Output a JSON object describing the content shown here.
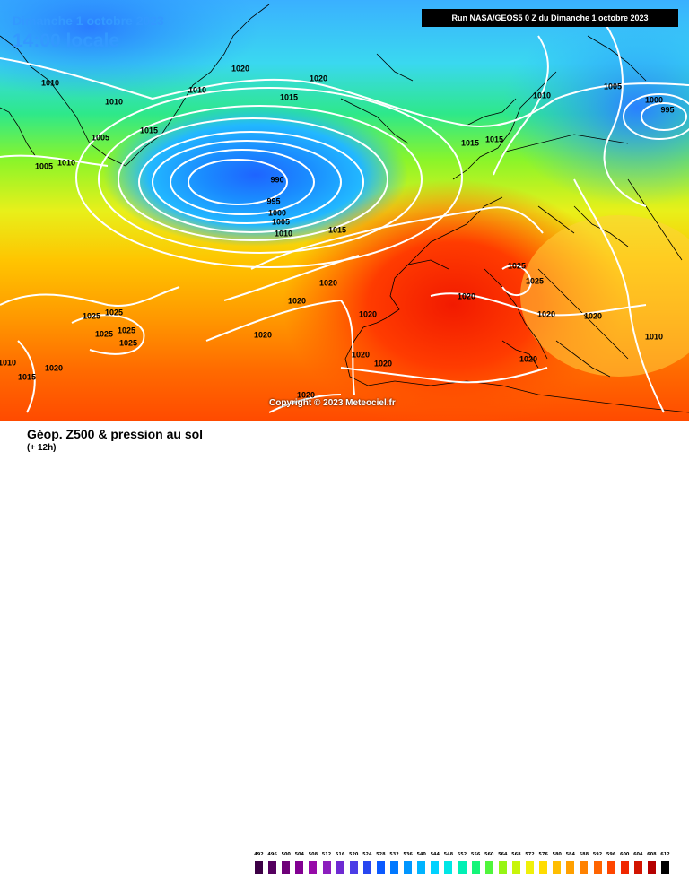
{
  "header": {
    "date": "Dimanche 1 octobre 2023",
    "time": "14:00 locale",
    "run": "Run NASA/GEOS5 0 Z du Dimanche 1 octobre 2023"
  },
  "copyright": "Copyright © 2023 Meteociel.fr",
  "footer": {
    "title": "Géop. Z500 & pression au sol",
    "subtitle": "(+ 12h)"
  },
  "legend": {
    "values": [
      "492",
      "496",
      "500",
      "504",
      "508",
      "512",
      "516",
      "520",
      "524",
      "528",
      "532",
      "536",
      "540",
      "544",
      "548",
      "552",
      "556",
      "560",
      "564",
      "568",
      "572",
      "576",
      "580",
      "584",
      "588",
      "592",
      "596",
      "600",
      "604",
      "608",
      "612"
    ],
    "colors": [
      "#3c0045",
      "#55005f",
      "#6e0078",
      "#820092",
      "#960aa8",
      "#8c1ebe",
      "#6e2ad2",
      "#4b3ce6",
      "#2846f0",
      "#0a5aff",
      "#0078ff",
      "#0096ff",
      "#00b4ff",
      "#00d2ff",
      "#00e6e6",
      "#00f0b4",
      "#14f578",
      "#50f53c",
      "#96f514",
      "#c8f50a",
      "#f0f00a",
      "#ffdc00",
      "#ffbe00",
      "#ffa000",
      "#ff8200",
      "#ff6400",
      "#ff4600",
      "#f02800",
      "#d21400",
      "#b40000",
      "#000000"
    ]
  },
  "isobar_labels": [
    {
      "text": "1020",
      "pos": [
        268,
        77
      ]
    },
    {
      "text": "1020",
      "pos": [
        355,
        88
      ]
    },
    {
      "text": "1010",
      "pos": [
        56,
        93
      ]
    },
    {
      "text": "1010",
      "pos": [
        220,
        101
      ]
    },
    {
      "text": "1010",
      "pos": [
        127,
        114
      ]
    },
    {
      "text": "1015",
      "pos": [
        322,
        109
      ]
    },
    {
      "text": "1015",
      "pos": [
        166,
        146
      ]
    },
    {
      "text": "1005",
      "pos": [
        112,
        154
      ]
    },
    {
      "text": "1010",
      "pos": [
        74,
        182
      ]
    },
    {
      "text": "1005",
      "pos": [
        49,
        186
      ]
    },
    {
      "text": "990",
      "pos": [
        309,
        201
      ]
    },
    {
      "text": "995",
      "pos": [
        305,
        225
      ]
    },
    {
      "text": "1000",
      "pos": [
        309,
        238
      ]
    },
    {
      "text": "1005",
      "pos": [
        313,
        248
      ]
    },
    {
      "text": "1010",
      "pos": [
        316,
        261
      ]
    },
    {
      "text": "1015",
      "pos": [
        376,
        257
      ]
    },
    {
      "text": "1010",
      "pos": [
        604,
        107
      ]
    },
    {
      "text": "1005",
      "pos": [
        683,
        97
      ]
    },
    {
      "text": "1000",
      "pos": [
        729,
        112
      ]
    },
    {
      "text": "995",
      "pos": [
        744,
        123
      ]
    },
    {
      "text": "1015",
      "pos": [
        524,
        160
      ]
    },
    {
      "text": "1015",
      "pos": [
        551,
        156
      ]
    },
    {
      "text": "1025",
      "pos": [
        576,
        297
      ]
    },
    {
      "text": "1025",
      "pos": [
        596,
        314
      ]
    },
    {
      "text": "1020",
      "pos": [
        366,
        316
      ]
    },
    {
      "text": "1020",
      "pos": [
        331,
        336
      ]
    },
    {
      "text": "1020",
      "pos": [
        520,
        331
      ]
    },
    {
      "text": "1020",
      "pos": [
        410,
        351
      ]
    },
    {
      "text": "1020",
      "pos": [
        609,
        351
      ]
    },
    {
      "text": "1020",
      "pos": [
        661,
        353
      ]
    },
    {
      "text": "1025",
      "pos": [
        102,
        353
      ]
    },
    {
      "text": "1025",
      "pos": [
        127,
        349
      ]
    },
    {
      "text": "1025",
      "pos": [
        141,
        369
      ]
    },
    {
      "text": "1025",
      "pos": [
        116,
        373
      ]
    },
    {
      "text": "1025",
      "pos": [
        143,
        383
      ]
    },
    {
      "text": "1020",
      "pos": [
        293,
        374
      ]
    },
    {
      "text": "1010",
      "pos": [
        729,
        376
      ]
    },
    {
      "text": "1020",
      "pos": [
        402,
        396
      ]
    },
    {
      "text": "1020",
      "pos": [
        589,
        401
      ]
    },
    {
      "text": "1010",
      "pos": [
        8,
        405
      ]
    },
    {
      "text": "1020",
      "pos": [
        427,
        406
      ]
    },
    {
      "text": "1020",
      "pos": [
        60,
        411
      ]
    },
    {
      "text": "1015",
      "pos": [
        30,
        421
      ]
    },
    {
      "text": "1020",
      "pos": [
        341,
        441
      ]
    }
  ]
}
